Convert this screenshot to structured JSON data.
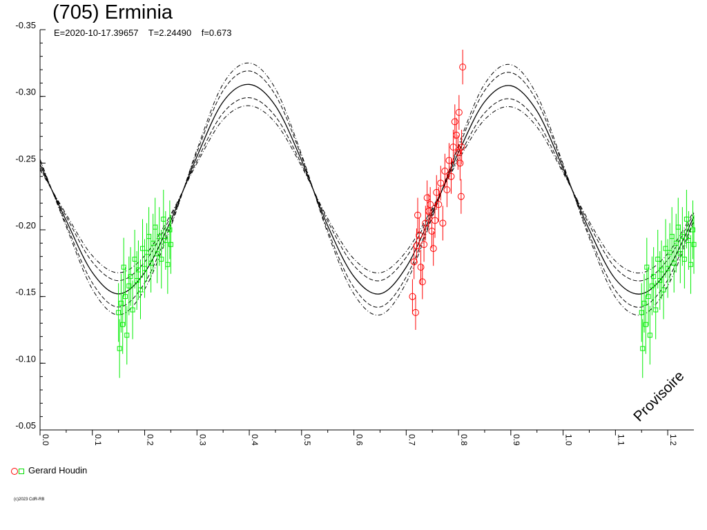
{
  "title": "(705) Erminia",
  "subtitle": "E=2020-10-17.39657    T=2.24490    f=0.673",
  "watermark": "Provisoire",
  "copyright": "(c)2023 CdR-RB",
  "legend": {
    "observer": "Gerard Houdin"
  },
  "colors": {
    "obs_circle": "#ff0000",
    "obs_square": "#00ee00",
    "curve": "#000000"
  },
  "chart_data": {
    "type": "scatter",
    "title": "(705) Erminia",
    "xlabel": "",
    "ylabel": "",
    "xlim": [
      0.0,
      1.25
    ],
    "ylim": [
      -0.05,
      -0.35
    ],
    "x_ticks": [
      "0.0",
      "0.1",
      "0.2",
      "0.3",
      "0.4",
      "0.5",
      "0.6",
      "0.7",
      "0.8",
      "0.9",
      "1.0",
      "1.1",
      "1.2"
    ],
    "y_ticks": [
      "-0.35",
      "-0.30",
      "-0.25",
      "-0.20",
      "-0.15",
      "-0.10",
      "-0.05"
    ],
    "grid": false,
    "model_curve": {
      "style": "solid",
      "x": [
        0.0,
        0.05,
        0.1,
        0.15,
        0.2,
        0.25,
        0.3,
        0.35,
        0.4,
        0.45,
        0.5,
        0.55,
        0.6,
        0.65,
        0.7,
        0.75,
        0.8,
        0.85,
        0.9,
        0.95,
        1.0,
        1.05,
        1.1,
        1.15,
        1.2,
        1.25
      ],
      "y": [
        -0.249,
        -0.207,
        -0.168,
        -0.152,
        -0.168,
        -0.207,
        -0.255,
        -0.296,
        -0.309,
        -0.293,
        -0.252,
        -0.203,
        -0.165,
        -0.152,
        -0.172,
        -0.213,
        -0.258,
        -0.296,
        -0.308,
        -0.289,
        -0.246,
        -0.2,
        -0.163,
        -0.152,
        -0.17,
        -0.21
      ]
    },
    "envelopes": [
      {
        "style": "dash",
        "offset": -0.01
      },
      {
        "style": "dash",
        "offset": 0.01
      },
      {
        "style": "dashdot",
        "offset": -0.016
      },
      {
        "style": "dashdot",
        "offset": 0.016
      }
    ],
    "series": [
      {
        "name": "Gerard Houdin",
        "marker": "circle",
        "color": "#ff0000",
        "x": [
          0.712,
          0.715,
          0.718,
          0.72,
          0.722,
          0.725,
          0.728,
          0.731,
          0.734,
          0.737,
          0.74,
          0.743,
          0.746,
          0.749,
          0.752,
          0.755,
          0.758,
          0.762,
          0.766,
          0.77,
          0.774,
          0.778,
          0.782,
          0.786,
          0.79,
          0.793,
          0.796,
          0.799,
          0.801,
          0.803,
          0.805,
          0.806,
          0.808
        ],
        "y": [
          -0.15,
          -0.176,
          -0.138,
          -0.188,
          -0.211,
          -0.196,
          -0.172,
          -0.161,
          -0.189,
          -0.205,
          -0.224,
          -0.214,
          -0.219,
          -0.199,
          -0.186,
          -0.207,
          -0.228,
          -0.219,
          -0.235,
          -0.205,
          -0.244,
          -0.23,
          -0.252,
          -0.24,
          -0.262,
          -0.281,
          -0.271,
          -0.258,
          -0.288,
          -0.25,
          -0.225,
          -0.262,
          -0.322
        ],
        "err": 0.013
      },
      {
        "name": "",
        "marker": "square",
        "color": "#00ee00",
        "phase_repeat": 1.0,
        "x": [
          0.15,
          0.152,
          0.155,
          0.158,
          0.16,
          0.163,
          0.166,
          0.17,
          0.173,
          0.177,
          0.181,
          0.185,
          0.188,
          0.192,
          0.196,
          0.2,
          0.204,
          0.208,
          0.212,
          0.216,
          0.22,
          0.224,
          0.228,
          0.232,
          0.236,
          0.24,
          0.244,
          0.248,
          0.25
        ],
        "y": [
          -0.138,
          -0.111,
          -0.145,
          -0.129,
          -0.172,
          -0.15,
          -0.121,
          -0.158,
          -0.165,
          -0.14,
          -0.178,
          -0.162,
          -0.17,
          -0.155,
          -0.186,
          -0.171,
          -0.183,
          -0.195,
          -0.175,
          -0.19,
          -0.202,
          -0.182,
          -0.195,
          -0.178,
          -0.208,
          -0.192,
          -0.174,
          -0.2,
          -0.189
        ],
        "err": 0.022
      }
    ]
  }
}
